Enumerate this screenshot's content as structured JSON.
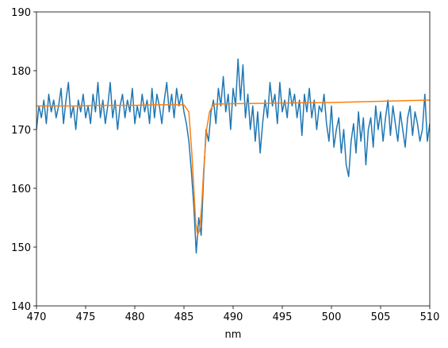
{
  "chart_data": {
    "type": "line",
    "x_label": "nm",
    "xlim": [
      470,
      510
    ],
    "xticks": [
      470,
      475,
      480,
      485,
      490,
      495,
      500,
      505,
      510
    ],
    "ylim": [
      140,
      190
    ],
    "yticks": [
      140,
      150,
      160,
      170,
      180,
      190
    ],
    "series": [
      {
        "color": "#1f77b4",
        "x": [
          470,
          470.25,
          470.5,
          470.75,
          471,
          471.25,
          471.5,
          471.75,
          472,
          472.25,
          472.5,
          472.75,
          473,
          473.25,
          473.5,
          473.75,
          474,
          474.25,
          474.5,
          474.75,
          475,
          475.25,
          475.5,
          475.75,
          476,
          476.25,
          476.5,
          476.75,
          477,
          477.25,
          477.5,
          477.75,
          478,
          478.25,
          478.5,
          478.75,
          479,
          479.25,
          479.5,
          479.75,
          480,
          480.25,
          480.5,
          480.75,
          481,
          481.25,
          481.5,
          481.75,
          482,
          482.25,
          482.5,
          482.75,
          483,
          483.25,
          483.5,
          483.75,
          484,
          484.25,
          484.5,
          484.75,
          485,
          485.25,
          485.5,
          485.75,
          486,
          486.25,
          486.5,
          486.75,
          487,
          487.25,
          487.5,
          487.75,
          488,
          488.25,
          488.5,
          488.75,
          489,
          489.25,
          489.5,
          489.75,
          490,
          490.25,
          490.5,
          490.75,
          491,
          491.25,
          491.5,
          491.75,
          492,
          492.25,
          492.5,
          492.75,
          493,
          493.25,
          493.5,
          493.75,
          494,
          494.25,
          494.5,
          494.75,
          495,
          495.25,
          495.5,
          495.75,
          496,
          496.25,
          496.5,
          496.75,
          497,
          497.25,
          497.5,
          497.75,
          498,
          498.25,
          498.5,
          498.75,
          499,
          499.25,
          499.5,
          499.75,
          500,
          500.25,
          500.5,
          500.75,
          501,
          501.25,
          501.5,
          501.75,
          502,
          502.25,
          502.5,
          502.75,
          503,
          503.25,
          503.5,
          503.75,
          504,
          504.25,
          504.5,
          504.75,
          505,
          505.25,
          505.5,
          505.75,
          506,
          506.25,
          506.5,
          506.75,
          507,
          507.25,
          507.5,
          507.75,
          508,
          508.25,
          508.5,
          508.75,
          509,
          509.25,
          509.5,
          509.75,
          510
        ],
        "values": [
          170,
          174,
          172,
          175,
          171,
          176,
          173,
          175,
          172,
          174,
          177,
          171,
          175,
          178,
          172,
          174,
          170,
          175,
          173,
          176,
          172,
          174,
          171,
          176,
          173,
          178,
          172,
          175,
          171,
          174,
          178,
          172,
          175,
          170,
          174,
          176,
          172,
          175,
          173,
          177,
          171,
          174,
          172,
          176,
          173,
          175,
          171,
          177,
          172,
          176,
          174,
          171,
          175,
          178,
          173,
          176,
          172,
          177,
          174,
          176,
          173,
          171,
          168,
          163,
          157,
          149,
          155,
          152,
          162,
          170,
          168,
          173,
          175,
          171,
          177,
          174,
          179,
          173,
          176,
          170,
          177,
          174,
          182,
          175,
          181,
          172,
          176,
          170,
          174,
          168,
          173,
          166,
          171,
          175,
          172,
          178,
          174,
          176,
          171,
          178,
          173,
          175,
          172,
          177,
          174,
          176,
          172,
          175,
          169,
          176,
          173,
          177,
          172,
          175,
          170,
          174,
          173,
          176,
          171,
          168,
          174,
          167,
          170,
          172,
          166,
          170,
          164,
          162,
          168,
          171,
          166,
          173,
          168,
          172,
          164,
          170,
          172,
          167,
          174,
          170,
          173,
          168,
          172,
          175,
          169,
          174,
          171,
          168,
          173,
          170,
          167,
          172,
          174,
          169,
          173,
          171,
          168,
          170,
          176,
          168,
          171
        ]
      },
      {
        "color": "#ff7f0e",
        "x": [
          470,
          472,
          474,
          476,
          478,
          480,
          482,
          484,
          485,
          485.5,
          485.8,
          486,
          486.2,
          486.4,
          486.6,
          486.8,
          487,
          487.3,
          487.6,
          488,
          490,
          495,
          500,
          505,
          510
        ],
        "values": [
          174,
          174,
          174,
          174.1,
          174.1,
          174.1,
          174.2,
          174.2,
          174.2,
          173,
          166,
          160,
          154,
          152,
          153,
          157,
          163,
          170,
          173,
          174.3,
          174.4,
          174.5,
          174.6,
          174.8,
          175
        ]
      }
    ]
  }
}
